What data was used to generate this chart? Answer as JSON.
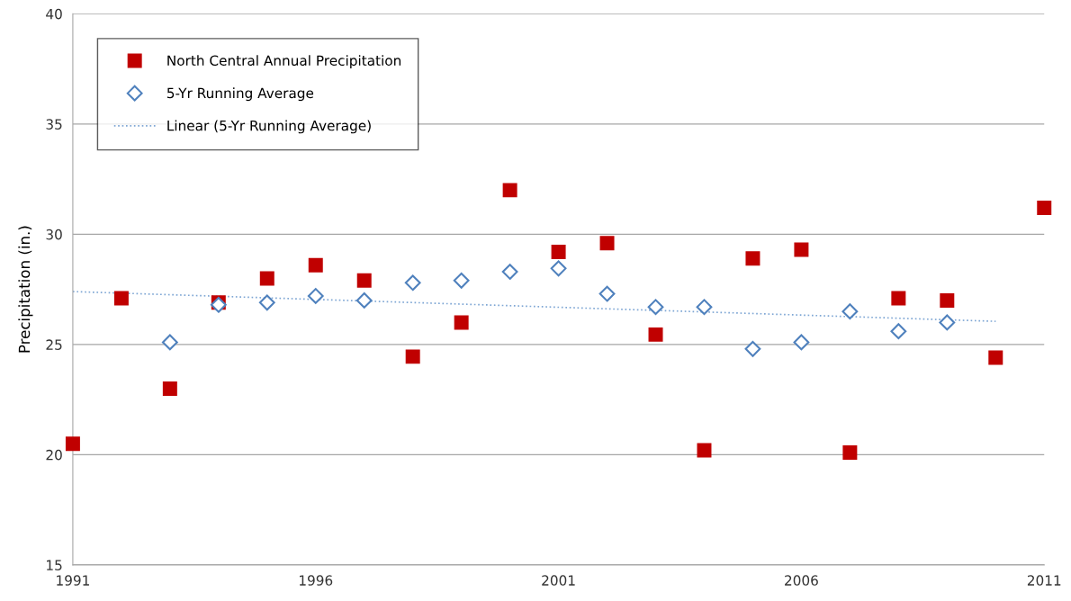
{
  "chart_data": {
    "type": "scatter",
    "ylabel": "Precipitation (in.)",
    "xlim": [
      1991,
      2011
    ],
    "xticks": [
      1991,
      1996,
      2001,
      2006,
      2011
    ],
    "ylim": [
      15,
      40
    ],
    "yticks": [
      15,
      20,
      25,
      30,
      35,
      40
    ],
    "grid": "y",
    "legend": "top left",
    "series": [
      {
        "name": "North Central Annual Precipitation",
        "marker": "square",
        "color": "#c00000",
        "x": [
          1991,
          1992,
          1993,
          1994,
          1995,
          1996,
          1997,
          1998,
          1999,
          2000,
          2001,
          2002,
          2003,
          2004,
          2005,
          2006,
          2007,
          2008,
          2009,
          2010,
          2011
        ],
        "values": [
          20.5,
          27.1,
          23.0,
          26.9,
          28.0,
          28.6,
          27.9,
          24.45,
          26.0,
          32.0,
          29.2,
          29.6,
          25.45,
          20.2,
          28.9,
          29.3,
          20.1,
          27.1,
          27.0,
          24.4,
          31.2
        ]
      },
      {
        "name": "5-Yr Running Average",
        "marker": "diamond",
        "color": "#4f81bd",
        "x": [
          1993,
          1994,
          1995,
          1996,
          1997,
          1998,
          1999,
          2000,
          2001,
          2002,
          2003,
          2004,
          2005,
          2006,
          2007,
          2008,
          2009
        ],
        "values": [
          25.1,
          26.8,
          26.9,
          27.2,
          27.0,
          27.8,
          27.9,
          28.3,
          28.45,
          27.3,
          26.7,
          26.7,
          24.8,
          25.1,
          26.5,
          25.6,
          26.0
        ]
      },
      {
        "name": "Linear (5-Yr Running Average)",
        "type": "line",
        "marker": "none",
        "line_style": "dotted",
        "color": "#7ea6d4",
        "x": [
          1991,
          2010
        ],
        "values": [
          27.4,
          26.05
        ]
      }
    ]
  }
}
